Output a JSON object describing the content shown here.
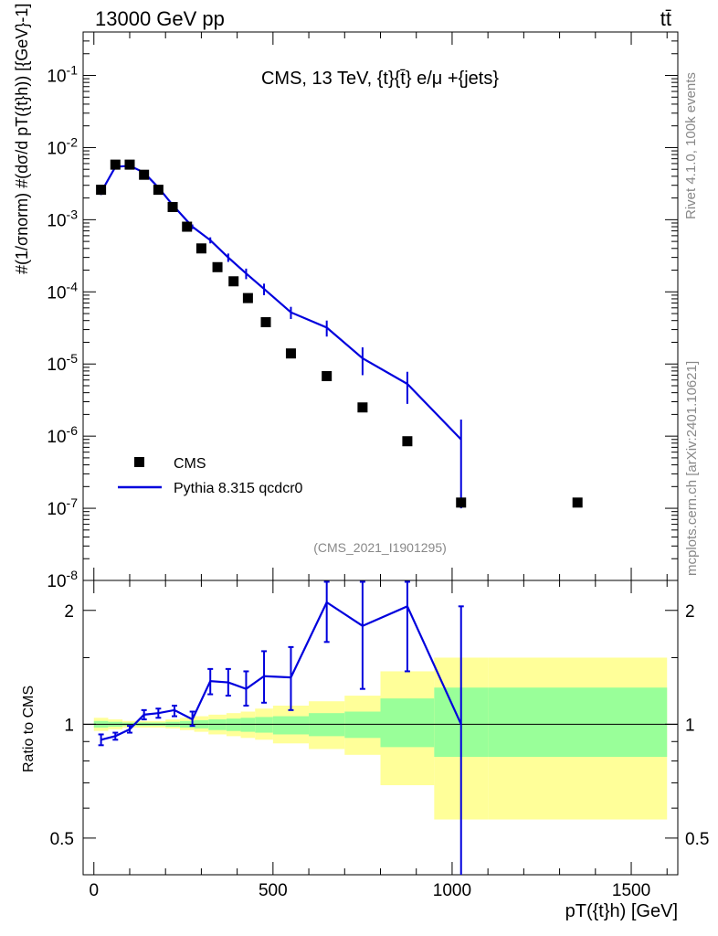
{
  "header": {
    "energy_label": "13000 GeV pp",
    "process_label": "tt̄"
  },
  "side_labels": {
    "rivet": "Rivet 4.1.0,  100k events",
    "mcplots": "mcplots.cern.ch [arXiv:2401.10621]"
  },
  "colors": {
    "mc_line": "#0000dd",
    "data_marker": "#000000",
    "band_inner": "#99ff99",
    "band_outer": "#ffff99"
  },
  "chart_data": [
    {
      "type": "scatter",
      "panel": "main",
      "title": "CMS, 13 TeV, {t}{t̄} e/μ +{jets}",
      "analysis_tag": "(CMS_2021_I1901295)",
      "ylabel": "#(1/σnorm) #(dσ/d pT({t}h)) [{GeV}-1]",
      "yscale": "log",
      "ylim": [
        1e-08,
        0.4
      ],
      "xlim": [
        -30,
        1630
      ],
      "y_ticks": [
        "10^-8",
        "10^-7",
        "10^-6",
        "10^-5",
        "10^-4",
        "10^-3",
        "10^-2",
        "10^-1"
      ],
      "legend": {
        "position": "bottom-left",
        "entries": [
          "CMS",
          "Pythia 8.315 qcdcr0"
        ]
      },
      "series": [
        {
          "name": "CMS",
          "style": "markers",
          "x": [
            20,
            60,
            100,
            140,
            180,
            220,
            260,
            300,
            345,
            390,
            430,
            480,
            550,
            650,
            750,
            875,
            1025,
            1350
          ],
          "y": [
            0.0026,
            0.0058,
            0.0058,
            0.0042,
            0.0026,
            0.0015,
            0.0008,
            0.0004,
            0.00022,
            0.00014,
            8.2e-05,
            3.8e-05,
            1.4e-05,
            6.8e-06,
            2.5e-06,
            8.5e-07,
            1.2e-07,
            1.2e-07
          ]
        },
        {
          "name": "Pythia 8.315 qcdcr0",
          "style": "line",
          "x": [
            20,
            60,
            100,
            140,
            180,
            220,
            275,
            325,
            375,
            425,
            475,
            550,
            650,
            750,
            875,
            1025
          ],
          "y": [
            0.0024,
            0.0054,
            0.0056,
            0.0045,
            0.0028,
            0.0016,
            0.0008,
            0.00052,
            0.0003,
            0.00018,
            0.00011,
            5.2e-05,
            3.2e-05,
            1.2e-05,
            5.3e-06,
            9e-07
          ],
          "y_err": [
            0.0002,
            0.0003,
            0.0003,
            0.0003,
            0.0002,
            0.0001,
            6e-05,
            5e-05,
            4e-05,
            3e-05,
            2e-05,
            1e-05,
            8e-06,
            5e-06,
            2.5e-06,
            8e-07
          ]
        }
      ]
    },
    {
      "type": "line",
      "panel": "ratio",
      "xlabel": "pT({t}h) [GeV]",
      "ylabel": "Ratio to CMS",
      "yscale": "log",
      "ylim": [
        0.4,
        2.4
      ],
      "xlim": [
        -30,
        1630
      ],
      "x_ticks": [
        0,
        500,
        1000,
        1500
      ],
      "y_ticks": [
        0.5,
        1,
        2
      ],
      "reference": 1,
      "series": [
        {
          "name": "Pythia 8.315 qcdcr0 / CMS",
          "x": [
            20,
            60,
            100,
            140,
            180,
            225,
            275,
            325,
            375,
            425,
            475,
            550,
            650,
            750,
            875,
            1025
          ],
          "y": [
            0.91,
            0.93,
            0.97,
            1.06,
            1.07,
            1.09,
            1.03,
            1.3,
            1.29,
            1.24,
            1.34,
            1.33,
            2.1,
            1.82,
            2.05,
            1.0
          ],
          "y_low": [
            0.88,
            0.91,
            0.95,
            1.03,
            1.04,
            1.05,
            0.99,
            1.2,
            1.19,
            1.12,
            1.14,
            1.09,
            1.65,
            1.24,
            1.38,
            0.25
          ],
          "y_high": [
            0.94,
            0.95,
            0.99,
            1.09,
            1.1,
            1.12,
            1.08,
            1.4,
            1.4,
            1.38,
            1.56,
            1.6,
            2.38,
            2.38,
            2.38,
            2.05
          ]
        }
      ],
      "uncertainty_bands": {
        "edges": [
          0,
          40,
          80,
          120,
          160,
          200,
          240,
          280,
          320,
          370,
          410,
          450,
          500,
          600,
          700,
          800,
          950,
          1100,
          1600
        ],
        "inner_low": [
          0.98,
          0.985,
          0.99,
          0.99,
          0.99,
          0.985,
          0.98,
          0.975,
          0.965,
          0.96,
          0.955,
          0.95,
          0.94,
          0.93,
          0.92,
          0.87,
          0.82,
          0.82
        ],
        "inner_high": [
          1.02,
          1.015,
          1.01,
          1.01,
          1.01,
          1.015,
          1.02,
          1.025,
          1.03,
          1.035,
          1.04,
          1.045,
          1.05,
          1.07,
          1.08,
          1.17,
          1.25,
          1.25
        ],
        "outer_low": [
          0.96,
          0.97,
          0.98,
          0.98,
          0.98,
          0.975,
          0.965,
          0.955,
          0.94,
          0.93,
          0.92,
          0.91,
          0.89,
          0.86,
          0.83,
          0.69,
          0.56,
          0.56
        ],
        "outer_high": [
          1.04,
          1.03,
          1.02,
          1.02,
          1.02,
          1.03,
          1.04,
          1.05,
          1.06,
          1.07,
          1.08,
          1.1,
          1.12,
          1.15,
          1.19,
          1.38,
          1.5,
          1.5
        ]
      }
    }
  ]
}
